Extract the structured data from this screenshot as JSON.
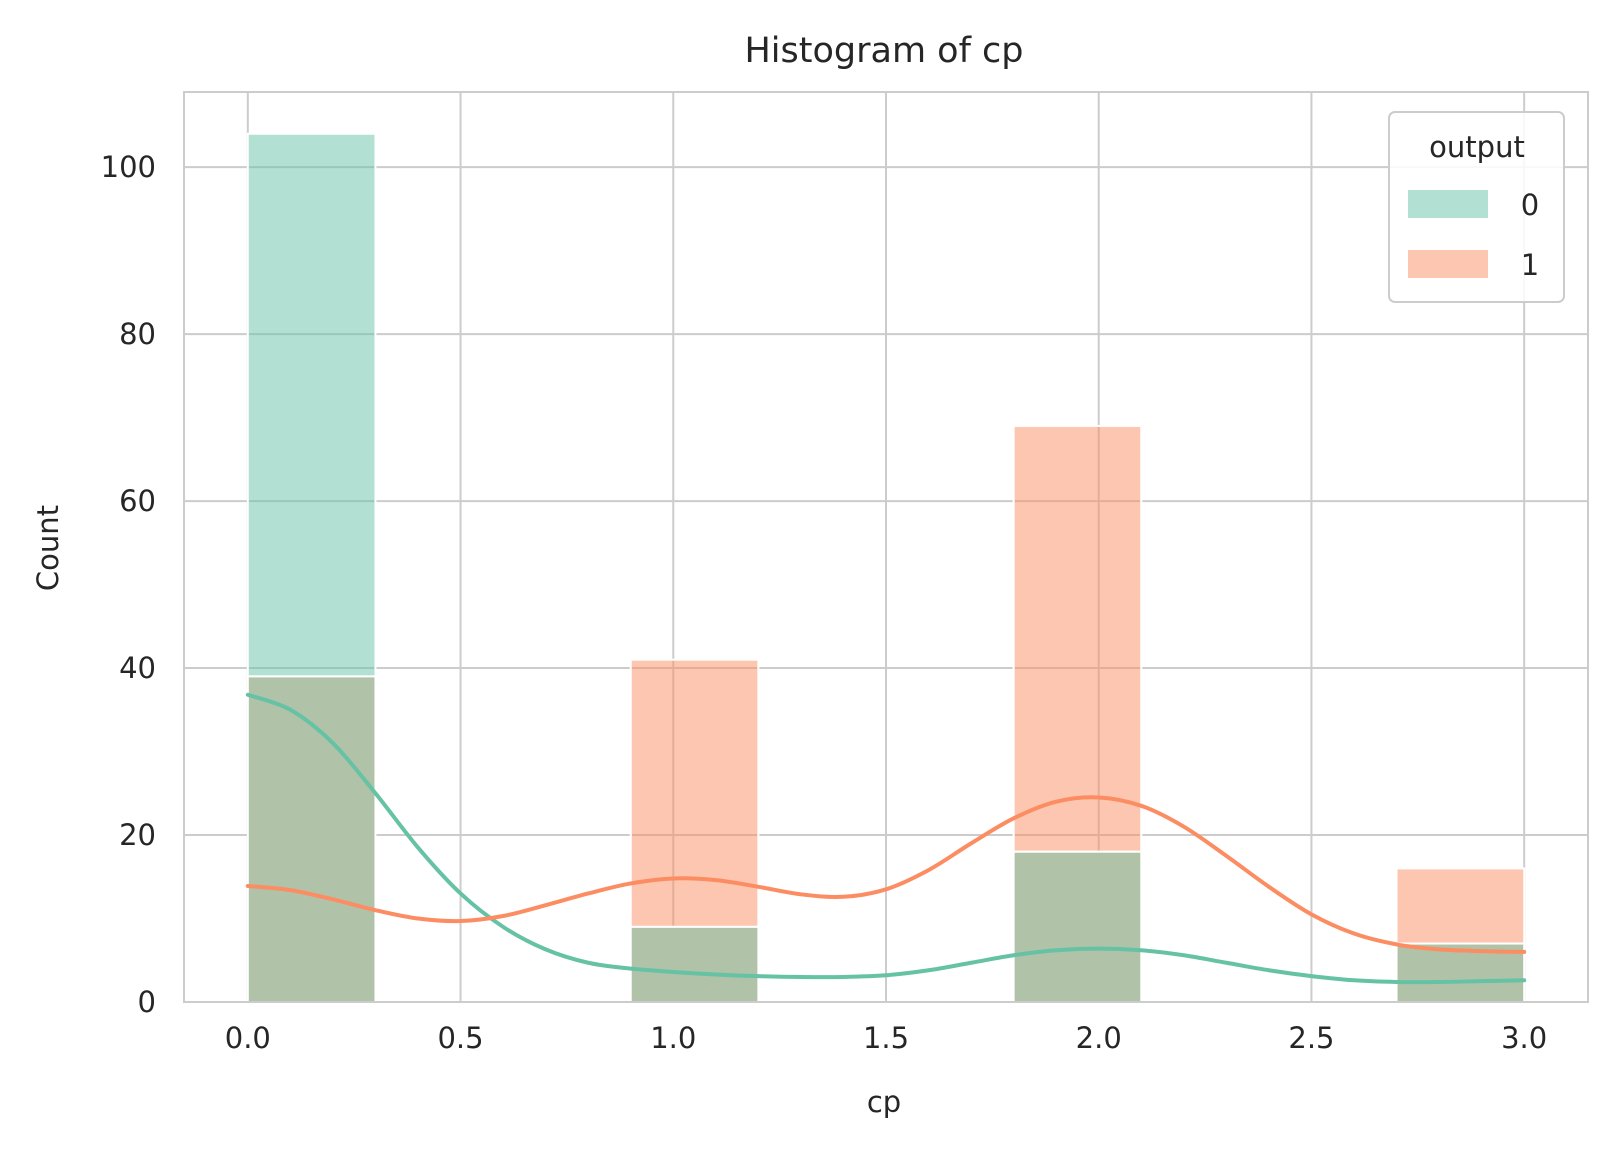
{
  "chart_data": {
    "type": "bar",
    "title": "Histogram of cp",
    "xlabel": "cp",
    "ylabel": "Count",
    "xlim": [
      -0.15,
      3.15
    ],
    "ylim": [
      0,
      109
    ],
    "xticks": [
      0.0,
      0.5,
      1.0,
      1.5,
      2.0,
      2.5,
      3.0
    ],
    "xtick_labels": [
      "0.0",
      "0.5",
      "1.0",
      "1.5",
      "2.0",
      "2.5",
      "3.0"
    ],
    "yticks": [
      0,
      20,
      40,
      60,
      80,
      100
    ],
    "ytick_labels": [
      "0",
      "20",
      "40",
      "60",
      "80",
      "100"
    ],
    "grid": true,
    "bins": [
      {
        "x0": 0.0,
        "x1": 0.3
      },
      {
        "x0": 0.9,
        "x1": 1.2
      },
      {
        "x0": 1.8,
        "x1": 2.1
      },
      {
        "x0": 2.7,
        "x1": 3.0
      }
    ],
    "series": [
      {
        "name": "0",
        "values": [
          104,
          9,
          18,
          7
        ],
        "color": "#66c2a5",
        "kde": [
          [
            0.0,
            36.8
          ],
          [
            0.1,
            35.0
          ],
          [
            0.2,
            31.0
          ],
          [
            0.3,
            25.0
          ],
          [
            0.4,
            18.5
          ],
          [
            0.5,
            13.0
          ],
          [
            0.6,
            9.0
          ],
          [
            0.7,
            6.3
          ],
          [
            0.8,
            4.7
          ],
          [
            0.9,
            4.0
          ],
          [
            1.0,
            3.6
          ],
          [
            1.1,
            3.3
          ],
          [
            1.2,
            3.1
          ],
          [
            1.3,
            3.0
          ],
          [
            1.4,
            3.0
          ],
          [
            1.5,
            3.2
          ],
          [
            1.6,
            3.8
          ],
          [
            1.7,
            4.7
          ],
          [
            1.8,
            5.6
          ],
          [
            1.9,
            6.2
          ],
          [
            2.0,
            6.4
          ],
          [
            2.1,
            6.2
          ],
          [
            2.2,
            5.6
          ],
          [
            2.3,
            4.7
          ],
          [
            2.4,
            3.8
          ],
          [
            2.5,
            3.1
          ],
          [
            2.6,
            2.6
          ],
          [
            2.7,
            2.4
          ],
          [
            2.8,
            2.4
          ],
          [
            2.9,
            2.5
          ],
          [
            3.0,
            2.6
          ]
        ]
      },
      {
        "name": "1",
        "values": [
          39,
          41,
          69,
          16
        ],
        "color": "#fc8d62",
        "kde": [
          [
            0.0,
            13.9
          ],
          [
            0.1,
            13.4
          ],
          [
            0.2,
            12.3
          ],
          [
            0.3,
            11.0
          ],
          [
            0.4,
            10.0
          ],
          [
            0.5,
            9.7
          ],
          [
            0.6,
            10.3
          ],
          [
            0.7,
            11.6
          ],
          [
            0.8,
            13.0
          ],
          [
            0.9,
            14.2
          ],
          [
            1.0,
            14.8
          ],
          [
            1.1,
            14.6
          ],
          [
            1.2,
            13.8
          ],
          [
            1.3,
            12.9
          ],
          [
            1.4,
            12.6
          ],
          [
            1.5,
            13.5
          ],
          [
            1.6,
            15.8
          ],
          [
            1.7,
            19.0
          ],
          [
            1.8,
            22.0
          ],
          [
            1.9,
            24.0
          ],
          [
            2.0,
            24.5
          ],
          [
            2.1,
            23.5
          ],
          [
            2.2,
            21.0
          ],
          [
            2.3,
            17.5
          ],
          [
            2.4,
            13.8
          ],
          [
            2.5,
            10.5
          ],
          [
            2.6,
            8.2
          ],
          [
            2.7,
            6.9
          ],
          [
            2.8,
            6.3
          ],
          [
            2.9,
            6.1
          ],
          [
            3.0,
            6.0
          ]
        ]
      }
    ],
    "overlap_color": "#b0c2a8",
    "legend": {
      "title": "output",
      "entries": [
        "0",
        "1"
      ],
      "position": "upper right"
    }
  }
}
